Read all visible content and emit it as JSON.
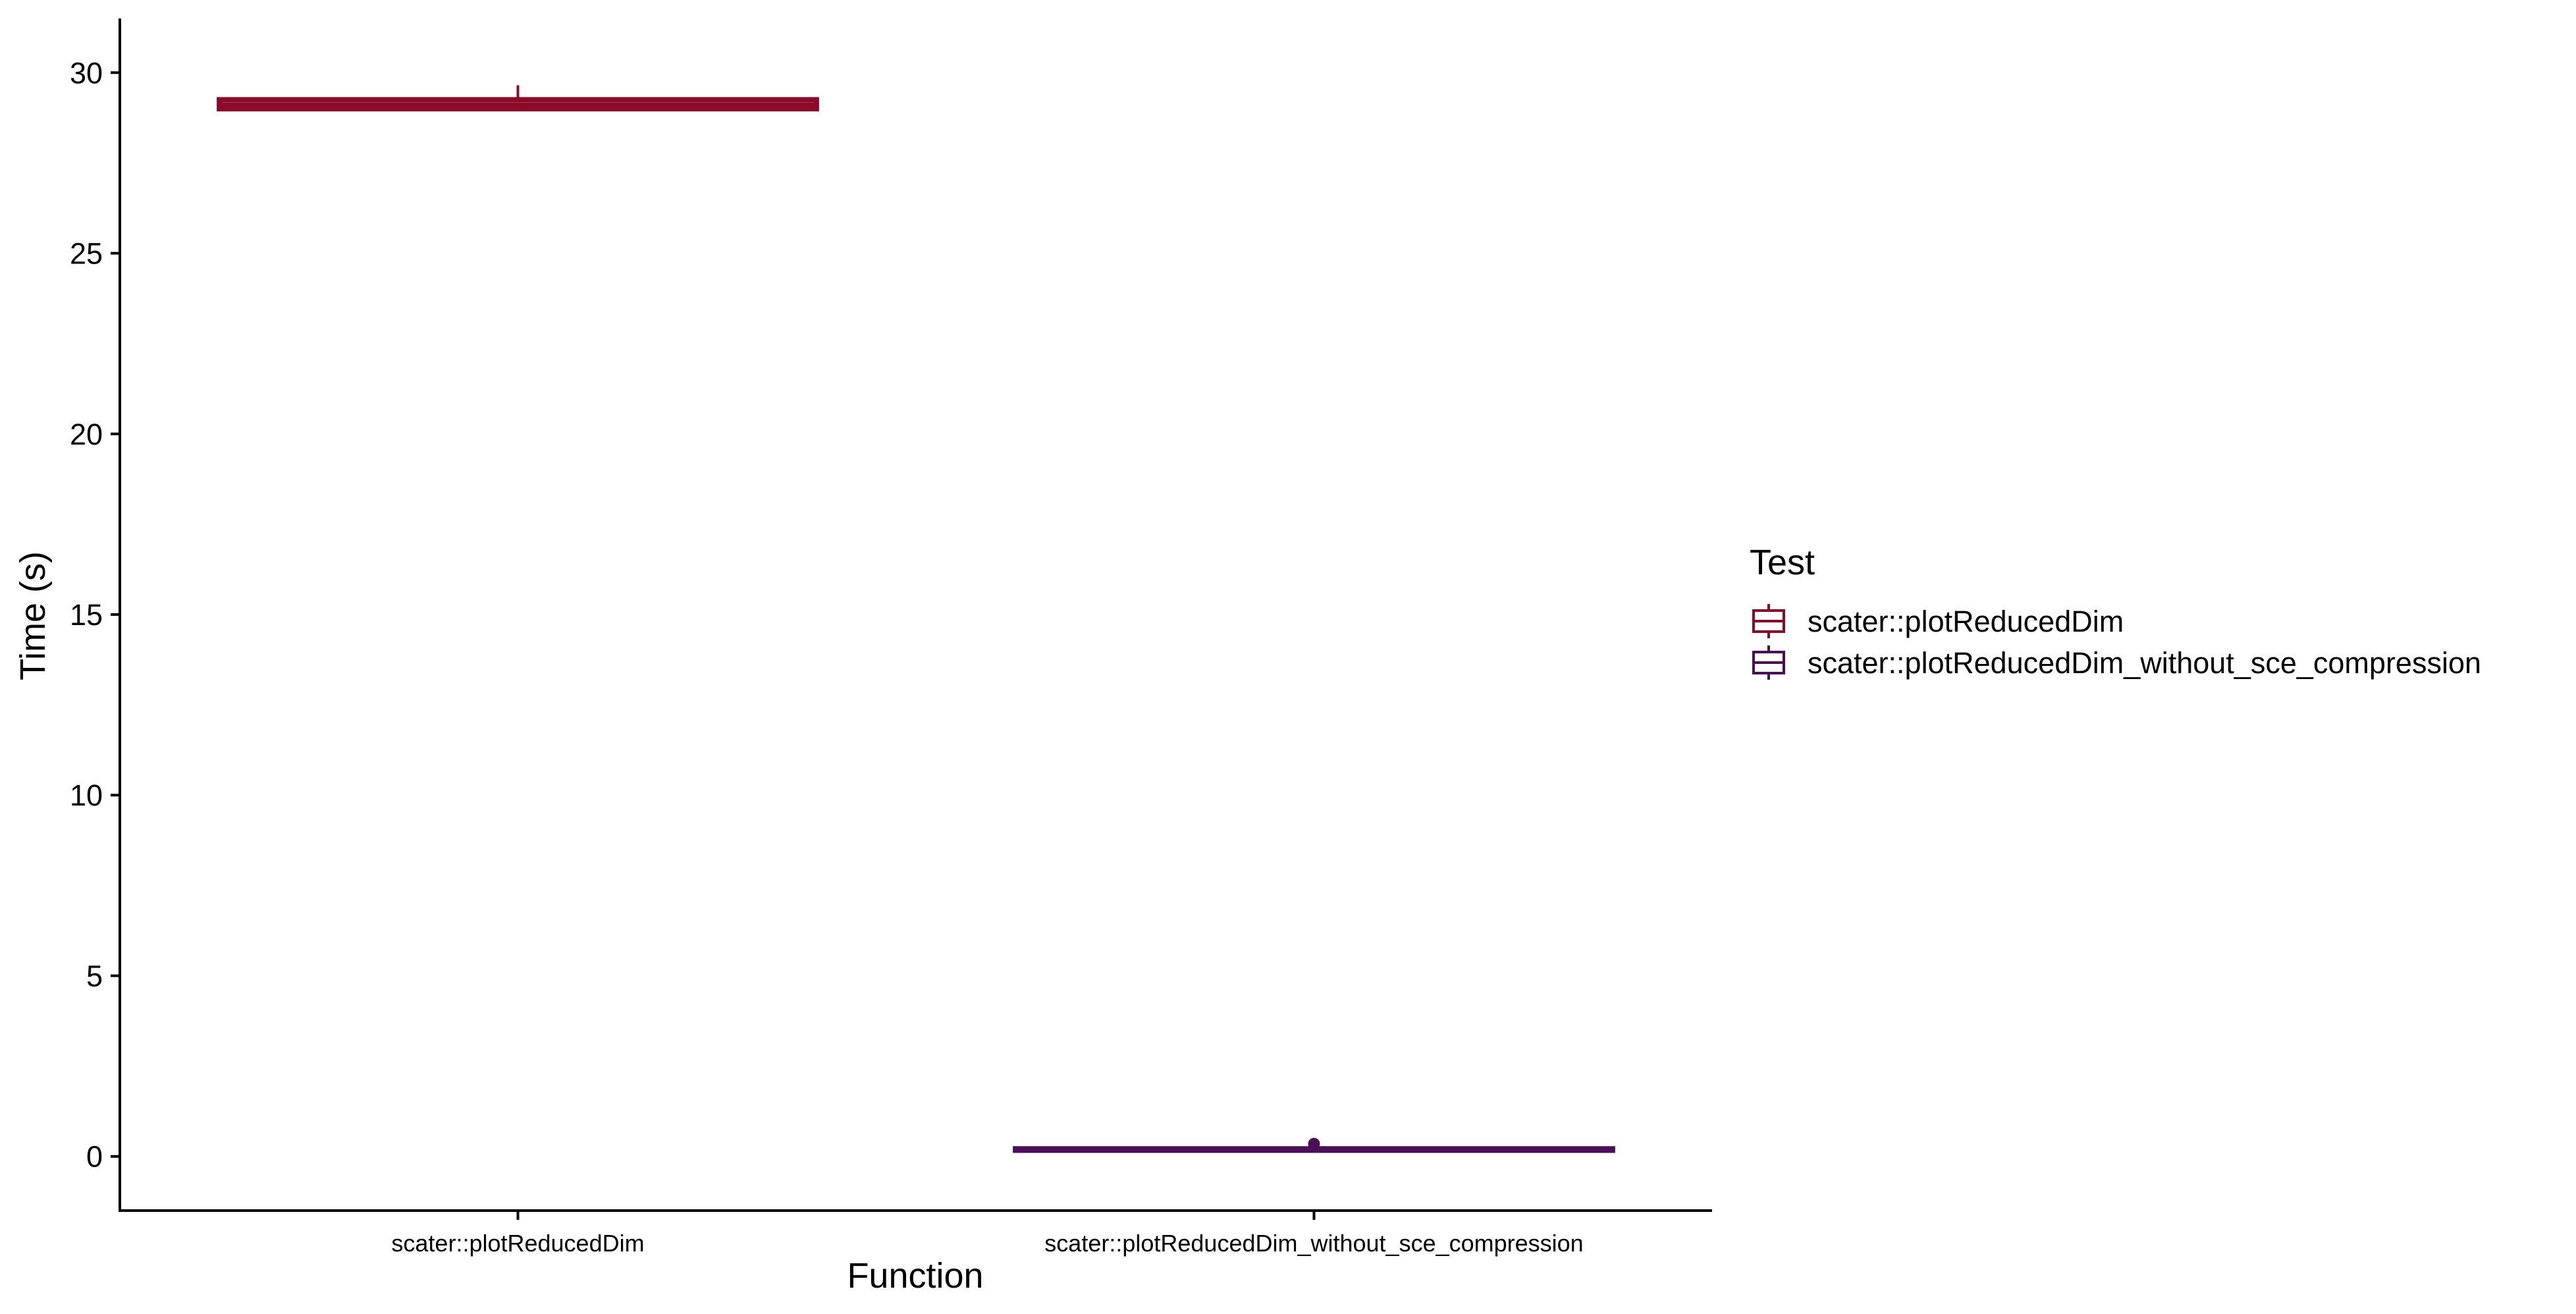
{
  "chart_data": {
    "type": "box",
    "title": "",
    "xlabel": "Function",
    "ylabel": "Time (s)",
    "ylim": [
      -1.5,
      31.5
    ],
    "yticks": [
      0,
      5,
      10,
      15,
      20,
      25,
      30
    ],
    "categories": [
      "scater::plotReducedDim",
      "scater::plotReducedDim_without_sce_compression"
    ],
    "legend": {
      "title": "Test",
      "placement": "right",
      "entries": [
        {
          "label": "scater::plotReducedDim",
          "color": "#8B0A2A"
        },
        {
          "label": "scater::plotReducedDim_without_sce_compression",
          "color": "#4B0F55"
        }
      ]
    },
    "series": [
      {
        "category": "scater::plotReducedDim",
        "color": "#8B0A2A",
        "min": 29.0,
        "q1": 29.0,
        "median": 29.1,
        "q3": 29.25,
        "max": 29.65,
        "outliers": []
      },
      {
        "category": "scater::plotReducedDim_without_sce_compression",
        "color": "#4B0F55",
        "min": 0.15,
        "q1": 0.17,
        "median": 0.19,
        "q3": 0.21,
        "max": 0.23,
        "outliers": [
          0.35
        ]
      }
    ]
  }
}
